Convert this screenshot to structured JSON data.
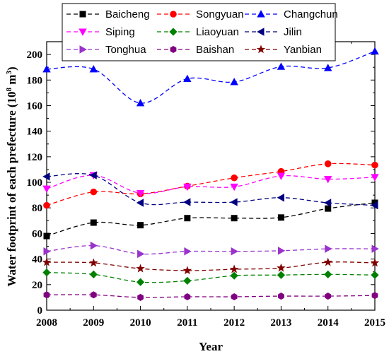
{
  "chart_data": {
    "type": "line",
    "xlabel": "Year",
    "ylabel": "Water footprint of each prefecture (10",
    "ylabel_sup": "8",
    "ylabel_unit": " m",
    "ylabel_sup2": "3",
    "ylabel_end": ")",
    "x": [
      2008,
      2009,
      2010,
      2011,
      2012,
      2013,
      2014,
      2015
    ],
    "x_ticks": [
      "2008",
      "2009",
      "2010",
      "2011",
      "2012",
      "2013",
      "2014",
      "2015"
    ],
    "xlim": [
      2008,
      2015
    ],
    "ylim": [
      0,
      210
    ],
    "y_ticks": [
      "0",
      "20",
      "40",
      "60",
      "80",
      "100",
      "120",
      "140",
      "160",
      "180",
      "200"
    ],
    "y_tick_values": [
      0,
      20,
      40,
      60,
      80,
      100,
      120,
      140,
      160,
      180,
      200
    ],
    "legend_position": "top",
    "grid": false,
    "series": [
      {
        "name": "Baicheng",
        "color": "#000000",
        "marker": "square",
        "values": [
          58,
          68.5,
          66.5,
          72,
          72,
          72.5,
          79.5,
          84
        ]
      },
      {
        "name": "Songyuan",
        "color": "#ff0000",
        "marker": "circle",
        "values": [
          82,
          92.5,
          91,
          97,
          103.5,
          108.5,
          114.5,
          113.5
        ]
      },
      {
        "name": "Changchun",
        "color": "#0000ff",
        "marker": "triangle-up",
        "values": [
          188.5,
          188.5,
          162,
          181,
          178.5,
          190.5,
          189.5,
          202.5
        ]
      },
      {
        "name": "Siping",
        "color": "#ff00ff",
        "marker": "triangle-down",
        "values": [
          95,
          105.5,
          91.5,
          96.5,
          96.5,
          105,
          102.5,
          104
        ]
      },
      {
        "name": "Liaoyuan",
        "color": "#008000",
        "marker": "diamond",
        "values": [
          29.5,
          28,
          22,
          23,
          27,
          27.5,
          28,
          27.5
        ]
      },
      {
        "name": "Jilin",
        "color": "#000080",
        "marker": "triangle-left",
        "values": [
          104.5,
          105.5,
          84,
          84.5,
          84.5,
          88,
          84,
          82
        ]
      },
      {
        "name": "Tonghua",
        "color": "#9933cc",
        "marker": "triangle-right",
        "values": [
          46,
          50.5,
          44,
          46,
          46,
          46.5,
          48,
          48
        ]
      },
      {
        "name": "Baishan",
        "color": "#800080",
        "marker": "hexagon",
        "values": [
          12,
          12,
          10,
          10.5,
          10.5,
          11,
          11,
          11.5
        ]
      },
      {
        "name": "Yanbian",
        "color": "#800000",
        "marker": "star",
        "values": [
          37.5,
          37,
          32.5,
          31,
          32,
          33,
          37.5,
          37
        ]
      }
    ]
  }
}
